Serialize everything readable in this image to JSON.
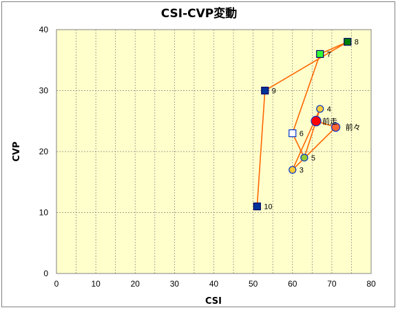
{
  "chart_data": {
    "type": "scatter",
    "title": "CSI-CVP変動",
    "xlabel": "CSI",
    "ylabel": "CVP",
    "xlim": [
      0,
      80
    ],
    "ylim": [
      0,
      40
    ],
    "xticks": [
      0,
      10,
      20,
      30,
      40,
      50,
      60,
      70,
      80
    ],
    "yticks": [
      0,
      10,
      20,
      30,
      40
    ],
    "grid": true,
    "background": "#ffffcc",
    "line_color": "#ff6600",
    "points": [
      {
        "label": "10",
        "x": 51,
        "y": 11,
        "marker": "square",
        "fill": "#003399",
        "stroke": "#000066"
      },
      {
        "label": "9",
        "x": 53,
        "y": 30,
        "marker": "square",
        "fill": "#003399",
        "stroke": "#000066"
      },
      {
        "label": "8",
        "x": 74,
        "y": 38,
        "marker": "square",
        "fill": "#008000",
        "stroke": "#000066"
      },
      {
        "label": "7",
        "x": 67,
        "y": 36,
        "marker": "square",
        "fill": "#33ff33",
        "stroke": "#000066"
      },
      {
        "label": "6",
        "x": 60,
        "y": 23,
        "marker": "square",
        "fill": "#ffffff",
        "stroke": "#0033cc"
      },
      {
        "label": "5",
        "x": 63,
        "y": 19,
        "marker": "circle",
        "fill": "#99cc33",
        "stroke": "#0033cc"
      },
      {
        "label": "4",
        "x": 67,
        "y": 27,
        "marker": "circle",
        "fill": "#ffcc33",
        "stroke": "#0033cc"
      },
      {
        "label": "3",
        "x": 60,
        "y": 17,
        "marker": "circle",
        "fill": "#ffcc33",
        "stroke": "#0033cc"
      },
      {
        "label": "前々",
        "x": 71,
        "y": 24,
        "marker": "circle-large",
        "fill": "#ff6633",
        "stroke": "#0033cc"
      },
      {
        "label": "前走",
        "x": 66,
        "y": 25,
        "marker": "circle-xlarge",
        "fill": "#ff0000",
        "stroke": "#0033cc"
      }
    ],
    "path_order": [
      "10",
      "9",
      "8",
      "7",
      "6",
      "5",
      "4",
      "3",
      "前々",
      "前走"
    ]
  }
}
